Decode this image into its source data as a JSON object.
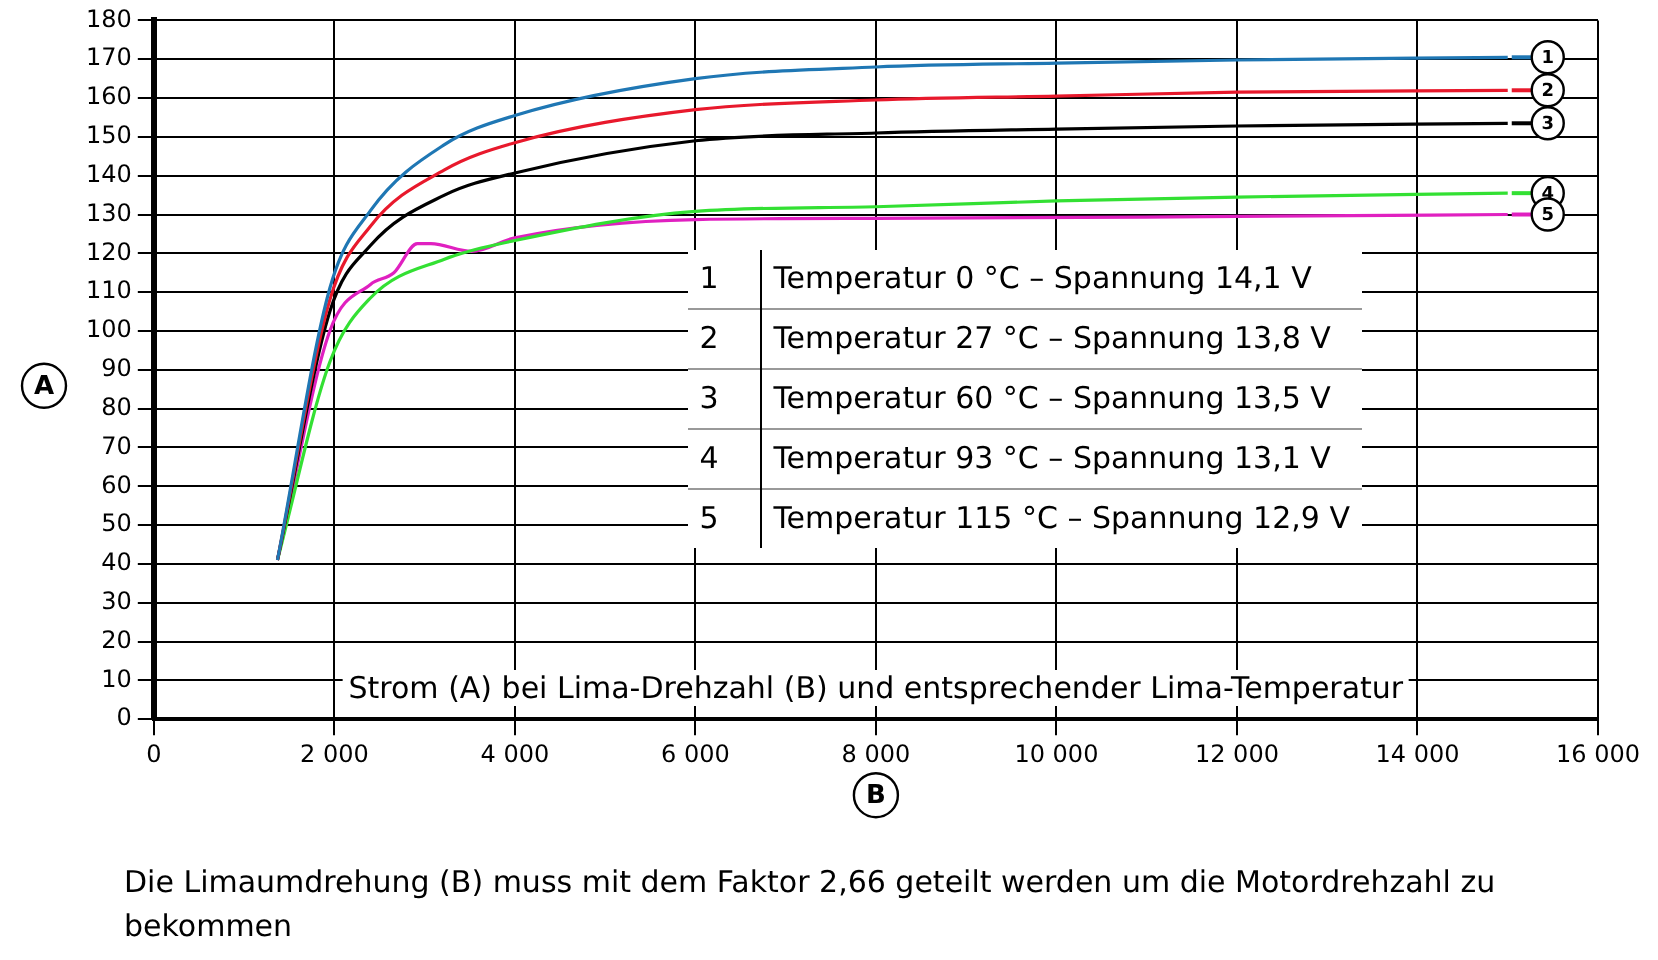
{
  "chart_data": {
    "type": "line",
    "xlabel": "B",
    "ylabel": "A",
    "x": [
      1370,
      1950,
      2400,
      3220,
      4000,
      6000,
      8000,
      10000,
      12000,
      15000
    ],
    "series": [
      {
        "name": "1",
        "color": "#1f77b4",
        "values": [
          41,
          111,
          131,
          148,
          155.5,
          165,
          168,
          169,
          169.8,
          170.5
        ]
      },
      {
        "name": "2",
        "color": "#e8192c",
        "values": [
          41,
          108,
          127,
          141.5,
          148.5,
          157,
          159.5,
          160.5,
          161.5,
          162
        ]
      },
      {
        "name": "3",
        "color": "#000000",
        "values": [
          41,
          105,
          122,
          135,
          140.7,
          149,
          151,
          152,
          152.8,
          153.5
        ]
      },
      {
        "name": "4",
        "color": "#33e033",
        "values": [
          41,
          92,
          108.5,
          118.5,
          123.3,
          130.8,
          132,
          133.5,
          134.5,
          135.5
        ]
      },
      {
        "name": "5",
        "color": "#e020c0",
        "x": [
          1370,
          1950,
          2400,
          2660,
          2920,
          3070,
          3520,
          4000,
          6000,
          8000,
          12000,
          15000
        ],
        "values": [
          41,
          100,
          112,
          115,
          122.5,
          122.5,
          120.5,
          124,
          128.7,
          129,
          129.5,
          130
        ]
      }
    ],
    "xlim": [
      0,
      16000
    ],
    "xticks": [
      0,
      {
        "value": 2000,
        "label": "2 000"
      },
      {
        "value": 4000,
        "label": "4 000"
      },
      {
        "value": 6000,
        "label": "6 000"
      },
      {
        "value": 8000,
        "label": "8 000"
      },
      {
        "value": 10000,
        "label": "10 000"
      },
      {
        "value": 12000,
        "label": "12 000"
      },
      {
        "value": 14000,
        "label": "14 000"
      },
      {
        "value": 16000,
        "label": "16 000"
      }
    ],
    "ylim": [
      0,
      180
    ],
    "yticks": [
      0,
      10,
      20,
      30,
      40,
      50,
      60,
      70,
      80,
      90,
      100,
      110,
      120,
      130,
      140,
      150,
      160,
      170,
      180
    ],
    "grid": true,
    "legend": "right",
    "marker": "none",
    "line_style": "solid",
    "annotations": [
      "Temperatur 0 °C – Spannung 14,1 V",
      "Temperatur 27 °C – Spannung 13,8 V",
      "Temperatur 60 °C – Spannung 13,5 V",
      "Temperatur 93 °C – Spannung 13,1 V",
      "Temperatur 115 °C – Spannung 12,9 V",
      "Strom (A) bei Lima-Drehzahl (B) und entsprechender Lima-Temperatur",
      "Die Limaumdrehung (B) muss mit dem Faktor 2,66 geteilt werden um die Motordrehzahl zu bekommen"
    ]
  }
}
